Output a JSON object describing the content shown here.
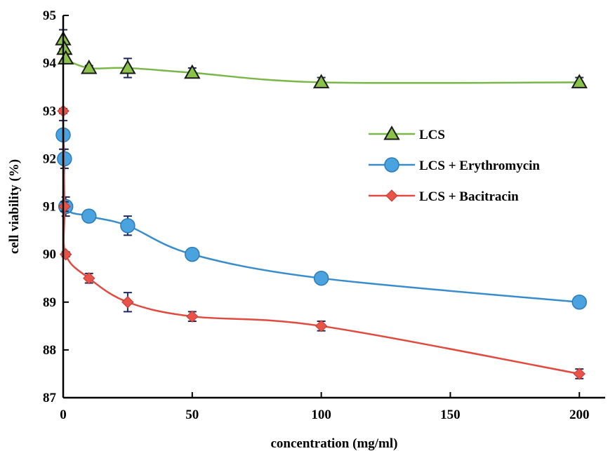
{
  "chart_data": {
    "type": "line",
    "xlabel": "concentration (mg/ml)",
    "ylabel": "cell viability (%)",
    "xlim": [
      0,
      210
    ],
    "ylim": [
      87,
      95
    ],
    "xticks": [
      0,
      50,
      100,
      150,
      200
    ],
    "yticks": [
      87,
      88,
      89,
      90,
      91,
      92,
      93,
      94,
      95
    ],
    "legend_position": "right-middle",
    "grid": false,
    "series": [
      {
        "name": "LCS",
        "color": "#7ab648",
        "marker": "triangle",
        "marker_fill": "#8bc34a",
        "points": [
          {
            "x": 0,
            "y": 94.5,
            "err": 0.2
          },
          {
            "x": 0.5,
            "y": 94.3,
            "err": 0.1
          },
          {
            "x": 1,
            "y": 94.1,
            "err": 0.1
          },
          {
            "x": 10,
            "y": 93.9,
            "err": 0.05
          },
          {
            "x": 25,
            "y": 93.9,
            "err": 0.2
          },
          {
            "x": 50,
            "y": 93.8,
            "err": 0.1
          },
          {
            "x": 100,
            "y": 93.6,
            "err": 0.1
          },
          {
            "x": 200,
            "y": 93.6,
            "err": 0.1
          }
        ]
      },
      {
        "name": "LCS + Erythromycin",
        "color": "#3a8dcc",
        "marker": "circle",
        "marker_fill": "#4aa3df",
        "points": [
          {
            "x": 0,
            "y": 92.5,
            "err": 0.3
          },
          {
            "x": 0.5,
            "y": 92.0,
            "err": 0.2
          },
          {
            "x": 1,
            "y": 91.0,
            "err": 0.2
          },
          {
            "x": 10,
            "y": 90.8,
            "err": 0.05
          },
          {
            "x": 25,
            "y": 90.6,
            "err": 0.2
          },
          {
            "x": 50,
            "y": 90.0,
            "err": 0.05
          },
          {
            "x": 100,
            "y": 89.5,
            "err": 0.05
          },
          {
            "x": 200,
            "y": 89.0,
            "err": 0.05
          }
        ]
      },
      {
        "name": "LCS + Bacitracin",
        "color": "#e04a3f",
        "marker": "diamond",
        "marker_fill": "#e8534a",
        "points": [
          {
            "x": 0,
            "y": 93.0,
            "err": 0.05
          },
          {
            "x": 0.5,
            "y": 91.0,
            "err": 0.1
          },
          {
            "x": 1,
            "y": 90.0,
            "err": 0.05
          },
          {
            "x": 10,
            "y": 89.5,
            "err": 0.1
          },
          {
            "x": 25,
            "y": 89.0,
            "err": 0.2
          },
          {
            "x": 50,
            "y": 88.7,
            "err": 0.1
          },
          {
            "x": 100,
            "y": 88.5,
            "err": 0.1
          },
          {
            "x": 200,
            "y": 87.5,
            "err": 0.1
          }
        ]
      }
    ]
  }
}
